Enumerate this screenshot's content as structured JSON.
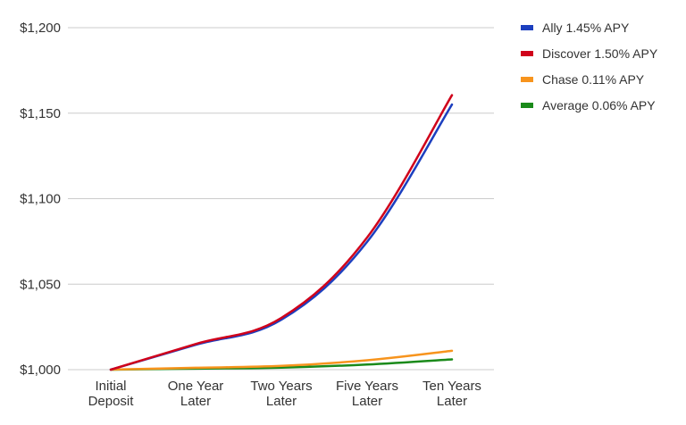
{
  "chart_data": {
    "type": "line",
    "title": "",
    "xlabel": "",
    "ylabel": "",
    "categories": [
      [
        "Initial",
        "Deposit"
      ],
      [
        "One Year",
        "Later"
      ],
      [
        "Two Years",
        "Later"
      ],
      [
        "Five Years",
        "Later"
      ],
      [
        "Ten Years",
        "Later"
      ]
    ],
    "x": [
      0,
      1,
      2,
      5,
      10
    ],
    "ylim": [
      1000,
      1200
    ],
    "yticks": [
      {
        "value": 1000,
        "label": "$1,000"
      },
      {
        "value": 1050,
        "label": "$1,050"
      },
      {
        "value": 1100,
        "label": "$1,100"
      },
      {
        "value": 1150,
        "label": "$1,150"
      },
      {
        "value": 1200,
        "label": "$1,200"
      }
    ],
    "grid": true,
    "legend_position": "top-right",
    "series": [
      {
        "name": "Ally 1.45% APY",
        "color": "#1c3fbf",
        "values": [
          1000,
          1014.5,
          1029.21,
          1074.74,
          1155.07
        ]
      },
      {
        "name": "Discover 1.50% APY",
        "color": "#d0021b",
        "values": [
          1000,
          1015.0,
          1030.23,
          1077.28,
          1160.54
        ]
      },
      {
        "name": "Chase 0.11% APY",
        "color": "#f7941d",
        "values": [
          1000,
          1001.1,
          1002.2,
          1005.51,
          1011.05
        ]
      },
      {
        "name": "Average 0.06% APY",
        "color": "#1a8a1a",
        "values": [
          1000,
          1000.6,
          1001.2,
          1003.0,
          1006.0
        ]
      }
    ]
  }
}
